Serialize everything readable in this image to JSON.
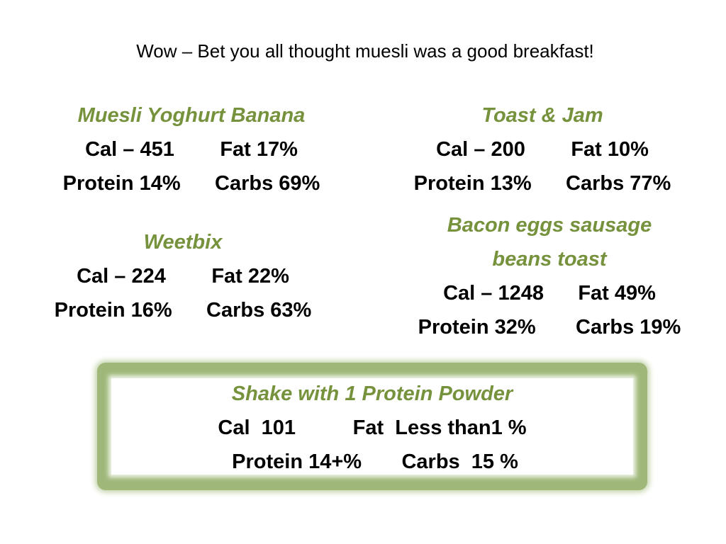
{
  "slide": {
    "title": "Wow – Bet you all thought muesli was a good breakfast!",
    "colors": {
      "heading_green": "#76923c",
      "frame_green": "#9fb87a"
    },
    "items": [
      {
        "name": "Muesli Yoghurt Banana",
        "cal": "Cal – 451",
        "fat": "Fat 17%",
        "protein": "Protein 14%",
        "carbs": "Carbs 69%"
      },
      {
        "name": "Toast & Jam",
        "cal": "Cal – 200",
        "fat": "Fat 10%",
        "protein": "Protein 13%",
        "carbs": "Carbs 77%"
      },
      {
        "name": "Weetbix",
        "cal": "Cal – 224",
        "fat": "Fat 22%",
        "protein": "Protein 16%",
        "carbs": "Carbs 63%"
      },
      {
        "name_line1": "Bacon eggs sausage",
        "name_line2": "beans toast",
        "cal": "Cal – 1248",
        "fat": "Fat 49%",
        "protein": "Protein 32%",
        "carbs": "Carbs 19%"
      }
    ],
    "shake": {
      "name": "Shake  with 1 Protein Powder",
      "cal": "Cal  101",
      "fat": "Fat  Less than1 %",
      "protein": "Protein 14+%",
      "carbs": "Carbs  15 %"
    }
  }
}
